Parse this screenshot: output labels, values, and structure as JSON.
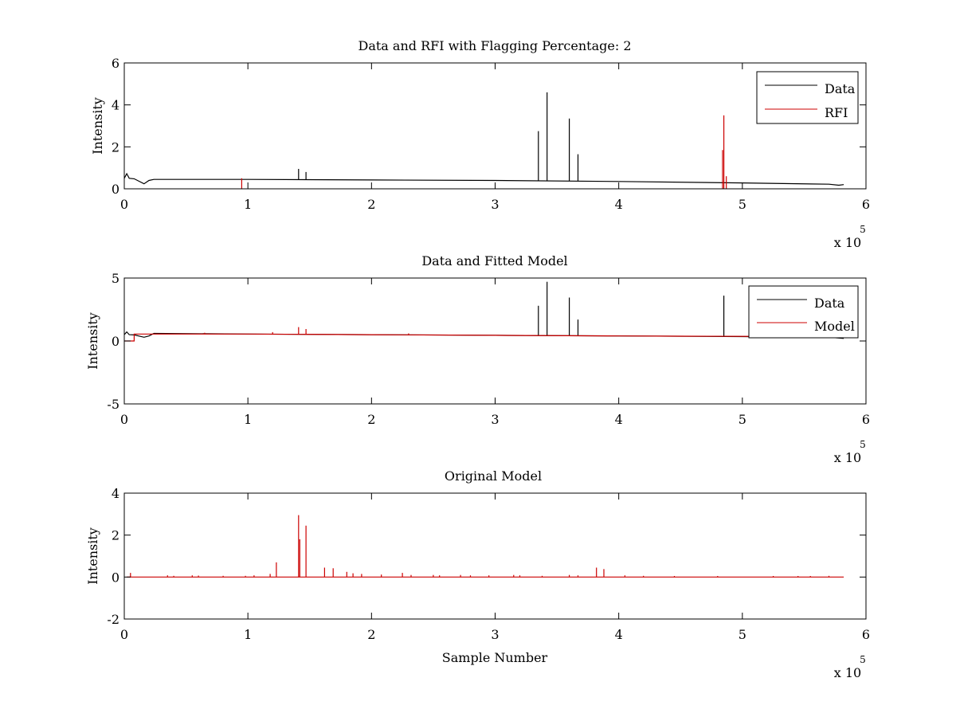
{
  "figure": {
    "background": "#ffffff"
  },
  "chart_data": [
    {
      "type": "line",
      "title": "Data and RFI with Flagging Percentage: 2",
      "xlabel": "",
      "ylabel": "Intensity",
      "xlim": [
        0,
        6
      ],
      "ylim": [
        0,
        6
      ],
      "xticks": [
        0,
        1,
        2,
        3,
        4,
        5,
        6
      ],
      "yticks": [
        0,
        2,
        4,
        6
      ],
      "x_exponent_label": "x 10",
      "x_exponent": "5",
      "legend": {
        "position": "top-right"
      },
      "series": [
        {
          "name": "Data",
          "color": "#000000",
          "baseline": [
            [
              0,
              0.5
            ],
            [
              0.02,
              0.72
            ],
            [
              0.04,
              0.5
            ],
            [
              0.08,
              0.48
            ],
            [
              0.16,
              0.24
            ],
            [
              0.2,
              0.4
            ],
            [
              0.24,
              0.45
            ],
            [
              1,
              0.45
            ],
            [
              2,
              0.42
            ],
            [
              3,
              0.4
            ],
            [
              4,
              0.35
            ],
            [
              5,
              0.28
            ],
            [
              5.7,
              0.22
            ],
            [
              5.78,
              0.17
            ],
            [
              5.82,
              0.2
            ]
          ],
          "spikes": [
            [
              1.41,
              0.95
            ],
            [
              1.47,
              0.8
            ],
            [
              3.35,
              2.75
            ],
            [
              3.42,
              4.6
            ],
            [
              3.6,
              3.35
            ],
            [
              3.67,
              1.65
            ]
          ]
        },
        {
          "name": "RFI",
          "color": "#cc0000",
          "baseline": [],
          "spikes": [
            [
              4.85,
              3.5
            ],
            [
              4.84,
              1.85
            ],
            [
              4.87,
              0.6
            ],
            [
              0.95,
              0.5
            ]
          ]
        }
      ]
    },
    {
      "type": "line",
      "title": "Data and Fitted Model",
      "xlabel": "",
      "ylabel": "Intensity",
      "xlim": [
        0,
        6
      ],
      "ylim": [
        -5,
        5
      ],
      "xticks": [
        0,
        1,
        2,
        3,
        4,
        5,
        6
      ],
      "yticks": [
        -5,
        0,
        5
      ],
      "x_exponent_label": "x 10",
      "x_exponent": "5",
      "legend": {
        "position": "top-right"
      },
      "series": [
        {
          "name": "Data",
          "color": "#000000",
          "baseline": [
            [
              0,
              0.5
            ],
            [
              0.02,
              0.72
            ],
            [
              0.04,
              0.5
            ],
            [
              0.08,
              0.48
            ],
            [
              0.16,
              0.3
            ],
            [
              0.2,
              0.4
            ],
            [
              0.24,
              0.6
            ],
            [
              1,
              0.55
            ],
            [
              2,
              0.5
            ],
            [
              3,
              0.45
            ],
            [
              4,
              0.4
            ],
            [
              5,
              0.35
            ],
            [
              5.7,
              0.3
            ],
            [
              5.82,
              0.2
            ]
          ],
          "spikes": [
            [
              3.35,
              2.8
            ],
            [
              3.42,
              4.7
            ],
            [
              3.6,
              3.45
            ],
            [
              3.67,
              1.7
            ],
            [
              4.85,
              3.6
            ]
          ]
        },
        {
          "name": "Model",
          "color": "#cc0000",
          "baseline": [
            [
              0,
              0.0
            ],
            [
              0.08,
              0.0
            ],
            [
              0.08,
              0.55
            ],
            [
              0.25,
              0.55
            ],
            [
              1,
              0.55
            ],
            [
              2,
              0.5
            ],
            [
              3,
              0.45
            ],
            [
              4,
              0.4
            ],
            [
              4.5,
              0.38
            ],
            [
              5.82,
              0.35
            ]
          ],
          "spikes": [
            [
              1.41,
              1.1
            ],
            [
              1.47,
              0.95
            ],
            [
              1.2,
              0.7
            ],
            [
              0.65,
              0.65
            ],
            [
              2.3,
              0.6
            ]
          ]
        }
      ]
    },
    {
      "type": "line",
      "title": "Original Model",
      "xlabel": "Sample Number",
      "ylabel": "Intensity",
      "xlim": [
        0,
        6
      ],
      "ylim": [
        -2,
        4
      ],
      "xticks": [
        0,
        1,
        2,
        3,
        4,
        5,
        6
      ],
      "yticks": [
        -2,
        0,
        2,
        4
      ],
      "x_exponent_label": "x 10",
      "x_exponent": "5",
      "legend": null,
      "series": [
        {
          "name": "",
          "color": "#cc0000",
          "baseline": [
            [
              0.02,
              0.0
            ],
            [
              5.82,
              0.0
            ]
          ],
          "spikes": [
            [
              0.05,
              0.2
            ],
            [
              0.35,
              0.08
            ],
            [
              0.4,
              0.06
            ],
            [
              0.55,
              0.08
            ],
            [
              0.6,
              0.07
            ],
            [
              0.8,
              0.06
            ],
            [
              0.98,
              0.06
            ],
            [
              1.05,
              0.08
            ],
            [
              1.18,
              0.15
            ],
            [
              1.23,
              0.7
            ],
            [
              1.41,
              2.95
            ],
            [
              1.42,
              1.8
            ],
            [
              1.47,
              2.45
            ],
            [
              1.62,
              0.45
            ],
            [
              1.69,
              0.42
            ],
            [
              1.8,
              0.25
            ],
            [
              1.85,
              0.18
            ],
            [
              1.92,
              0.15
            ],
            [
              2.08,
              0.12
            ],
            [
              2.25,
              0.2
            ],
            [
              2.32,
              0.1
            ],
            [
              2.5,
              0.1
            ],
            [
              2.55,
              0.08
            ],
            [
              2.72,
              0.1
            ],
            [
              2.8,
              0.08
            ],
            [
              2.95,
              0.08
            ],
            [
              3.15,
              0.1
            ],
            [
              3.2,
              0.08
            ],
            [
              3.38,
              0.06
            ],
            [
              3.6,
              0.1
            ],
            [
              3.67,
              0.08
            ],
            [
              3.82,
              0.45
            ],
            [
              3.88,
              0.38
            ],
            [
              4.05,
              0.08
            ],
            [
              4.2,
              0.06
            ],
            [
              4.45,
              0.05
            ],
            [
              4.8,
              0.05
            ],
            [
              5.25,
              0.05
            ],
            [
              5.45,
              0.05
            ],
            [
              5.55,
              0.05
            ],
            [
              5.7,
              0.06
            ]
          ]
        }
      ]
    }
  ]
}
